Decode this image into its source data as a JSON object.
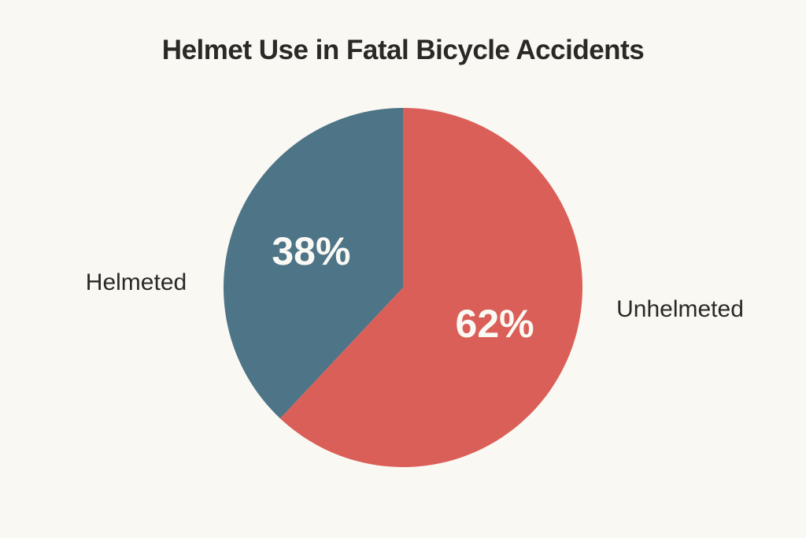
{
  "page": {
    "background_color": "#faf8f2",
    "text_color": "#2b2926"
  },
  "chart_data": {
    "type": "pie",
    "title": "Helmet Use in Fatal Bicycle Accidents",
    "title_color": "#2b2926",
    "start_angle_deg": 0,
    "direction": "clockwise",
    "slices": [
      {
        "label": "Unhelmeted",
        "value": 62,
        "value_label": "62%",
        "color": "#da5f58"
      },
      {
        "label": "Helmeted",
        "value": 38,
        "value_label": "38%",
        "color": "#4d7487"
      }
    ],
    "value_label_color": "#fbf9f4",
    "side_labels": {
      "left": "Helmeted",
      "right": "Unhelmeted"
    },
    "legend_position": "sides",
    "grid": false
  }
}
